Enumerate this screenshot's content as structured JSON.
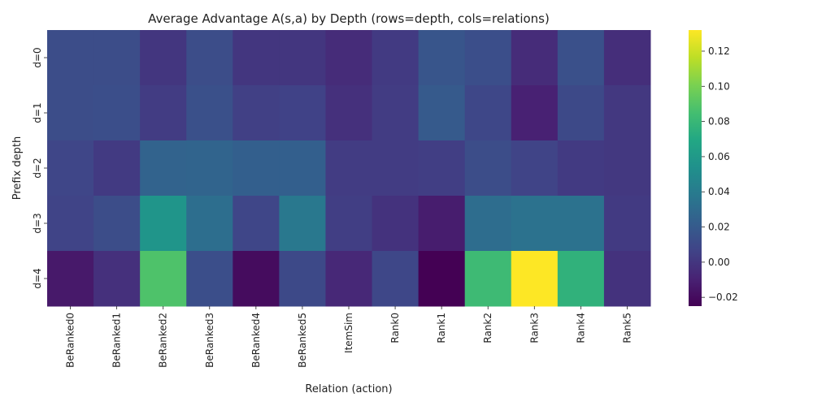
{
  "chart_data": {
    "type": "heatmap",
    "title": "Average Advantage A(s,a) by Depth (rows=depth, cols=relations)",
    "xlabel": "Relation (action)",
    "ylabel": "Prefix depth",
    "columns": [
      "BeRanked0",
      "BeRanked1",
      "BeRanked2",
      "BeRanked3",
      "BeRanked4",
      "BeRanked5",
      "ItemSim",
      "Rank0",
      "Rank1",
      "Rank2",
      "Rank3",
      "Rank4",
      "Rank5"
    ],
    "rows": [
      "d=0",
      "d=1",
      "d=2",
      "d=3",
      "d=4"
    ],
    "values": [
      [
        0.012,
        0.012,
        0.0,
        0.012,
        0.0,
        0.0,
        -0.005,
        0.002,
        0.017,
        0.013,
        -0.005,
        0.014,
        -0.004
      ],
      [
        0.012,
        0.013,
        0.003,
        0.014,
        0.005,
        0.006,
        -0.003,
        0.003,
        0.02,
        0.009,
        -0.01,
        0.01,
        0.001
      ],
      [
        0.008,
        0.002,
        0.025,
        0.026,
        0.023,
        0.023,
        0.003,
        0.003,
        0.004,
        0.012,
        0.007,
        0.002,
        0.001
      ],
      [
        0.007,
        0.012,
        0.057,
        0.032,
        0.008,
        0.038,
        0.004,
        -0.002,
        -0.012,
        0.031,
        0.034,
        0.034,
        0.002
      ],
      [
        -0.014,
        -0.003,
        0.088,
        0.013,
        -0.02,
        0.01,
        -0.007,
        0.009,
        -0.025,
        0.082,
        0.132,
        0.076,
        -0.002
      ]
    ],
    "vmin": -0.025,
    "vmax": 0.132,
    "colormap": "viridis",
    "colorbar_ticks": [
      "-0.02",
      "0.00",
      "0.02",
      "0.04",
      "0.06",
      "0.08",
      "0.10",
      "0.12"
    ],
    "grid": false
  }
}
